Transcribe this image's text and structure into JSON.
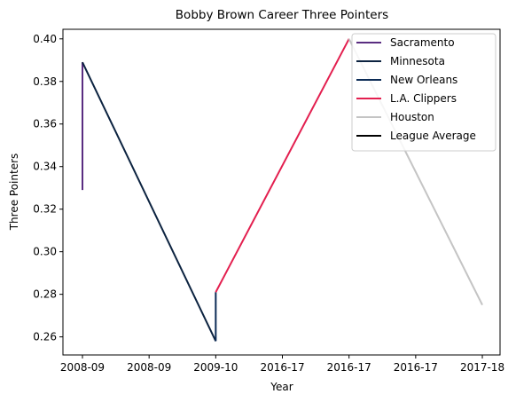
{
  "chart_data": {
    "type": "line",
    "title": "Bobby Brown  Career Three Pointers",
    "xlabel": "Year",
    "ylabel": "Three Pointers",
    "x_tick_labels": [
      "2008-09",
      "2008-09",
      "2009-10",
      "2016-17",
      "2016-17",
      "2016-17",
      "2017-18"
    ],
    "x_index_range": [
      0,
      6
    ],
    "ylim": [
      0.2515,
      0.4045
    ],
    "y_ticks": [
      0.26,
      0.28,
      0.3,
      0.32,
      0.34,
      0.36,
      0.38,
      0.4
    ],
    "y_tick_labels": [
      "0.26",
      "0.28",
      "0.30",
      "0.32",
      "0.34",
      "0.36",
      "0.38",
      "0.40"
    ],
    "grid": false,
    "legend_position": "top-right",
    "series": [
      {
        "name": "Sacramento",
        "color": "#5a2d81",
        "points": [
          [
            0,
            0.329
          ],
          [
            0,
            0.389
          ]
        ]
      },
      {
        "name": "Minnesota",
        "color": "#0c2340",
        "points": [
          [
            0,
            0.389
          ],
          [
            2,
            0.258
          ]
        ]
      },
      {
        "name": "New Orleans",
        "color": "#0c2c56",
        "points": [
          [
            2,
            0.258
          ],
          [
            2,
            0.281
          ]
        ]
      },
      {
        "name": "L.A. Clippers",
        "color": "#e31f4f",
        "points": [
          [
            2,
            0.281
          ],
          [
            4,
            0.4
          ]
        ]
      },
      {
        "name": "Houston",
        "color": "#c4c4c4",
        "points": [
          [
            4,
            0.4
          ],
          [
            6,
            0.275
          ]
        ]
      },
      {
        "name": "League Average",
        "color": "#000000",
        "points": []
      }
    ]
  }
}
